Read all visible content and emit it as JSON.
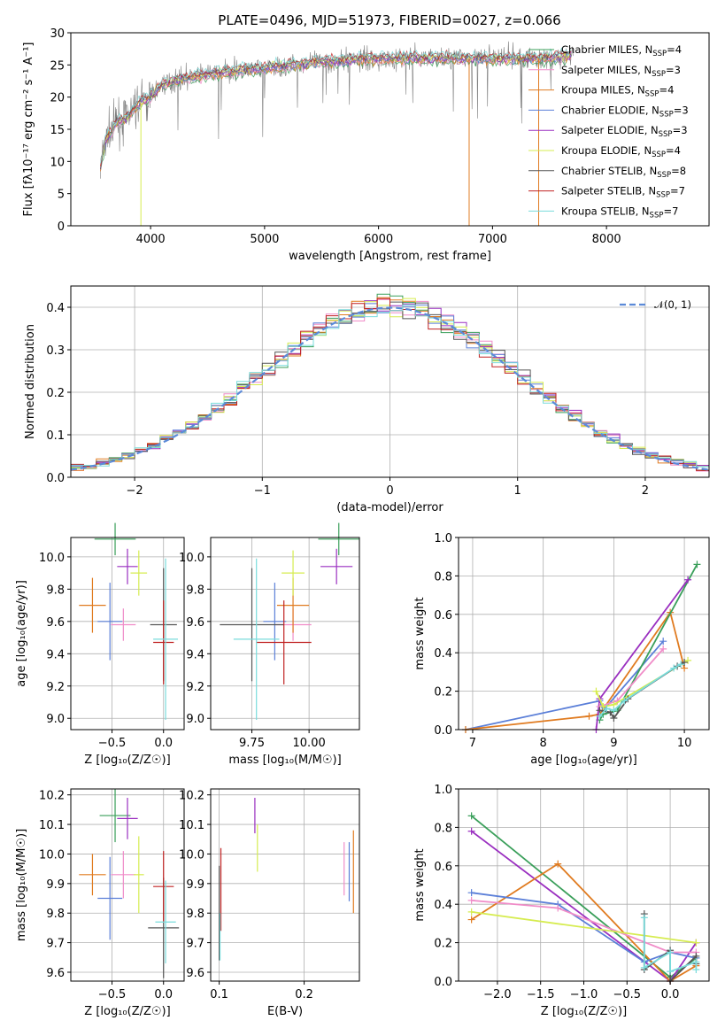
{
  "colors": {
    "chabrier_miles": "#3a9f5a",
    "salpeter_miles": "#f08cc8",
    "kroupa_miles": "#e07b20",
    "chabrier_elodie": "#5b7fd8",
    "salpeter_elodie": "#9a2fc0",
    "kroupa_elodie": "#d6ec50",
    "chabrier_stelib": "#555555",
    "salpeter_stelib": "#c02222",
    "kroupa_stelib": "#7adcdc",
    "grid": "#b0b0b0",
    "data_spectrum": "#808080",
    "normal_curve": "#5b8ad8"
  },
  "legend": [
    {
      "name": "Chabrier MILES",
      "n": "4",
      "color": "#3a9f5a"
    },
    {
      "name": "Salpeter MILES",
      "n": "3",
      "color": "#f08cc8"
    },
    {
      "name": "Kroupa MILES",
      "n": "4",
      "color": "#e07b20"
    },
    {
      "name": "Chabrier ELODIE",
      "n": "3",
      "color": "#5b7fd8"
    },
    {
      "name": "Salpeter ELODIE",
      "n": "3",
      "color": "#9a2fc0"
    },
    {
      "name": "Kroupa ELODIE",
      "n": "4",
      "color": "#d6ec50"
    },
    {
      "name": "Chabrier STELIB",
      "n": "8",
      "color": "#555555"
    },
    {
      "name": "Salpeter STELIB",
      "n": "7",
      "color": "#c02222"
    },
    {
      "name": "Kroupa STELIB",
      "n": "7",
      "color": "#7adcdc"
    }
  ],
  "chart_data": [
    {
      "id": "spectrum",
      "type": "line",
      "title": "PLATE=0496, MJD=51973, FIBERID=0027, z=0.066",
      "xlabel": "wavelength [Angstrom, rest frame]",
      "ylabel": "Flux [fλ10⁻¹⁷ erg cm⁻² s⁻¹ A⁻¹]",
      "xlim": [
        3300,
        8900
      ],
      "ylim": [
        0,
        30
      ],
      "xticks": [
        4000,
        5000,
        6000,
        7000,
        8000
      ],
      "yticks": [
        0,
        5,
        10,
        15,
        20,
        25,
        30
      ],
      "continuum": [
        [
          3550,
          8
        ],
        [
          3600,
          13
        ],
        [
          3700,
          16
        ],
        [
          3800,
          17
        ],
        [
          3900,
          19
        ],
        [
          4000,
          20
        ],
        [
          4100,
          22
        ],
        [
          4300,
          23
        ],
        [
          4500,
          23.5
        ],
        [
          4700,
          24
        ],
        [
          5000,
          24.5
        ],
        [
          5500,
          25.5
        ],
        [
          6000,
          26
        ],
        [
          6500,
          26
        ],
        [
          7000,
          26
        ],
        [
          7500,
          26
        ],
        [
          7700,
          26.5
        ]
      ]
    },
    {
      "id": "residuals",
      "type": "line",
      "xlabel": "(data-model)/error",
      "ylabel": "Normed distribution",
      "xlim": [
        -2.5,
        2.5
      ],
      "ylim": [
        0,
        0.45
      ],
      "xticks": [
        -2,
        -1,
        0,
        1,
        2
      ],
      "yticks": [
        0.0,
        0.1,
        0.2,
        0.3,
        0.4
      ],
      "legend_label": "𝒩(0, 1)",
      "hist_bin_width": 0.1
    },
    {
      "id": "age_vs_Z",
      "type": "scatter",
      "xlabel": "Z [log₁₀(Z/Z☉)]",
      "ylabel": "age  [log₁₀(age/yr)]",
      "xlim": [
        -0.9,
        0.2
      ],
      "ylim": [
        8.93,
        10.12
      ],
      "xticks": [
        -0.5,
        0.0
      ],
      "yticks": [
        9.0,
        9.2,
        9.4,
        9.6,
        9.8,
        10.0
      ],
      "points": [
        {
          "x": -0.47,
          "y": 10.11,
          "xerr": 0.2,
          "yerr": 0.1,
          "c": "chabrier_miles"
        },
        {
          "x": -0.39,
          "y": 9.58,
          "xerr": 0.12,
          "yerr": 0.1,
          "c": "salpeter_miles"
        },
        {
          "x": -0.69,
          "y": 9.7,
          "xerr": 0.13,
          "yerr": 0.17,
          "c": "kroupa_miles"
        },
        {
          "x": -0.52,
          "y": 9.6,
          "xerr": 0.12,
          "yerr": 0.24,
          "c": "chabrier_elodie"
        },
        {
          "x": -0.35,
          "y": 9.94,
          "xerr": 0.1,
          "yerr": 0.11,
          "c": "salpeter_elodie"
        },
        {
          "x": -0.24,
          "y": 9.9,
          "xerr": 0.08,
          "yerr": 0.14,
          "c": "kroupa_elodie"
        },
        {
          "x": 0.0,
          "y": 9.58,
          "xerr": 0.13,
          "yerr": 0.35,
          "c": "chabrier_stelib"
        },
        {
          "x": 0.0,
          "y": 9.47,
          "xerr": 0.1,
          "yerr": 0.26,
          "c": "salpeter_stelib"
        },
        {
          "x": 0.02,
          "y": 9.49,
          "xerr": 0.12,
          "yerr": 0.5,
          "c": "kroupa_stelib"
        }
      ]
    },
    {
      "id": "age_vs_mass",
      "type": "scatter",
      "xlabel": "mass [log₁₀(M/M☉)]",
      "ylabel": "",
      "xlim": [
        9.57,
        10.22
      ],
      "ylim": [
        8.93,
        10.12
      ],
      "xticks": [
        9.75,
        10.0
      ],
      "yticks": [
        9.0,
        9.2,
        9.4,
        9.6,
        9.8,
        10.0
      ],
      "points": [
        {
          "x": 10.13,
          "y": 10.11,
          "xerr": 0.09,
          "yerr": 0.1,
          "c": "chabrier_miles"
        },
        {
          "x": 9.93,
          "y": 9.58,
          "xerr": 0.08,
          "yerr": 0.1,
          "c": "salpeter_miles"
        },
        {
          "x": 9.93,
          "y": 9.7,
          "xerr": 0.07,
          "yerr": 0.17,
          "c": "kroupa_miles"
        },
        {
          "x": 9.85,
          "y": 9.6,
          "xerr": 0.05,
          "yerr": 0.24,
          "c": "chabrier_elodie"
        },
        {
          "x": 10.12,
          "y": 9.94,
          "xerr": 0.07,
          "yerr": 0.11,
          "c": "salpeter_elodie"
        },
        {
          "x": 9.93,
          "y": 9.9,
          "xerr": 0.05,
          "yerr": 0.14,
          "c": "kroupa_elodie"
        },
        {
          "x": 9.75,
          "y": 9.58,
          "xerr": 0.14,
          "yerr": 0.35,
          "c": "chabrier_stelib"
        },
        {
          "x": 9.89,
          "y": 9.47,
          "xerr": 0.12,
          "yerr": 0.26,
          "c": "salpeter_stelib"
        },
        {
          "x": 9.77,
          "y": 9.49,
          "xerr": 0.1,
          "yerr": 0.5,
          "c": "kroupa_stelib"
        }
      ]
    },
    {
      "id": "weight_vs_age",
      "type": "line",
      "xlabel": "age  [log₁₀(age/yr)]",
      "ylabel": "mass weight",
      "xlim": [
        6.8,
        10.35
      ],
      "ylim": [
        0,
        1.0
      ],
      "xticks": [
        7,
        8,
        9,
        10
      ],
      "yticks": [
        0.0,
        0.2,
        0.4,
        0.6,
        0.8,
        1.0
      ],
      "series": [
        {
          "c": "chabrier_elodie",
          "x": [
            6.9,
            8.8,
            8.85,
            9.7
          ],
          "y": [
            0.0,
            0.15,
            0.1,
            0.46
          ]
        },
        {
          "c": "kroupa_miles",
          "x": [
            6.9,
            8.65,
            8.8,
            9.8,
            10.0
          ],
          "y": [
            0.0,
            0.07,
            0.08,
            0.61,
            0.32
          ]
        },
        {
          "c": "chabrier_miles",
          "x": [
            8.8,
            8.85,
            9.05,
            10.18
          ],
          "y": [
            0.05,
            0.08,
            0.1,
            0.86
          ]
        },
        {
          "c": "salpeter_elodie",
          "x": [
            8.75,
            8.8,
            10.05
          ],
          "y": [
            0.0,
            0.16,
            0.78
          ]
        },
        {
          "c": "salpeter_miles",
          "x": [
            8.8,
            9.05,
            9.7
          ],
          "y": [
            0.12,
            0.15,
            0.42
          ]
        },
        {
          "c": "kroupa_elodie",
          "x": [
            8.75,
            8.85,
            9.0,
            10.05
          ],
          "y": [
            0.2,
            0.12,
            0.13,
            0.36
          ]
        },
        {
          "c": "chabrier_stelib",
          "x": [
            8.8,
            8.95,
            9.0,
            9.2,
            9.9,
            10.0
          ],
          "y": [
            0.1,
            0.09,
            0.06,
            0.16,
            0.33,
            0.35
          ]
        },
        {
          "c": "kroupa_stelib",
          "x": [
            8.8,
            8.9,
            9.0,
            9.15,
            9.85,
            9.95
          ],
          "y": [
            0.07,
            0.11,
            0.1,
            0.15,
            0.32,
            0.34
          ]
        }
      ]
    },
    {
      "id": "mass_vs_Z",
      "type": "scatter",
      "xlabel": "Z [log₁₀(Z/Z☉)]",
      "ylabel": "mass [log₁₀(M/M☉)]",
      "xlim": [
        -0.9,
        0.2
      ],
      "ylim": [
        9.57,
        10.22
      ],
      "xticks": [
        -0.5,
        0.0
      ],
      "yticks": [
        9.6,
        9.7,
        9.8,
        9.9,
        10.0,
        10.1,
        10.2
      ],
      "points": [
        {
          "x": -0.47,
          "y": 10.13,
          "xerr": 0.15,
          "yerr": 0.09,
          "c": "chabrier_miles"
        },
        {
          "x": -0.39,
          "y": 9.93,
          "xerr": 0.12,
          "yerr": 0.08,
          "c": "salpeter_miles"
        },
        {
          "x": -0.69,
          "y": 9.93,
          "xerr": 0.13,
          "yerr": 0.07,
          "c": "kroupa_miles"
        },
        {
          "x": -0.52,
          "y": 9.85,
          "xerr": 0.12,
          "yerr": 0.14,
          "c": "chabrier_elodie"
        },
        {
          "x": -0.35,
          "y": 10.12,
          "xerr": 0.1,
          "yerr": 0.07,
          "c": "salpeter_elodie"
        },
        {
          "x": -0.24,
          "y": 9.93,
          "xerr": 0.05,
          "yerr": 0.13,
          "c": "kroupa_elodie"
        },
        {
          "x": 0.0,
          "y": 9.75,
          "xerr": 0.15,
          "yerr": 0.17,
          "c": "chabrier_stelib"
        },
        {
          "x": 0.0,
          "y": 9.89,
          "xerr": 0.1,
          "yerr": 0.12,
          "c": "salpeter_stelib"
        },
        {
          "x": 0.02,
          "y": 9.77,
          "xerr": 0.1,
          "yerr": 0.14,
          "c": "kroupa_stelib"
        }
      ]
    },
    {
      "id": "mass_vs_ebv",
      "type": "scatter",
      "xlabel": "E(B-V)",
      "ylabel": "",
      "xlim": [
        0.09,
        0.265
      ],
      "ylim": [
        9.57,
        10.22
      ],
      "xticks": [
        0.1,
        0.2
      ],
      "yticks": [
        9.6,
        9.7,
        9.8,
        9.9,
        10.0,
        10.1,
        10.2
      ],
      "points": [
        {
          "x": 0.142,
          "y": 10.13,
          "xerr": 0,
          "yerr": 0.06,
          "c": "salpeter_elodie"
        },
        {
          "x": 0.145,
          "y": 10.02,
          "xerr": 0,
          "yerr": 0.08,
          "c": "kroupa_elodie"
        },
        {
          "x": 0.247,
          "y": 9.95,
          "xerr": 0,
          "yerr": 0.09,
          "c": "salpeter_miles"
        },
        {
          "x": 0.253,
          "y": 9.94,
          "xerr": 0,
          "yerr": 0.1,
          "c": "chabrier_elodie"
        },
        {
          "x": 0.258,
          "y": 9.94,
          "xerr": 0,
          "yerr": 0.14,
          "c": "kroupa_miles"
        },
        {
          "x": 0.102,
          "y": 9.88,
          "xerr": 0,
          "yerr": 0.14,
          "c": "salpeter_stelib"
        },
        {
          "x": 0.1,
          "y": 9.8,
          "xerr": 0,
          "yerr": 0.16,
          "c": "chabrier_stelib"
        },
        {
          "x": 0.101,
          "y": 9.72,
          "xerr": 0,
          "yerr": 0.08,
          "c": "kroupa_stelib"
        }
      ]
    },
    {
      "id": "weight_vs_Z",
      "type": "line",
      "xlabel": "Z [log₁₀(Z/Z☉)]",
      "ylabel": "mass weight",
      "xlim": [
        -2.45,
        0.45
      ],
      "ylim": [
        0,
        1.0
      ],
      "xticks": [
        -2.0,
        -1.5,
        -1.0,
        -0.5,
        0.0
      ],
      "yticks": [
        0.0,
        0.2,
        0.4,
        0.6,
        0.8,
        1.0
      ],
      "series": [
        {
          "c": "chabrier_miles",
          "x": [
            -2.3,
            0.0,
            0.3
          ],
          "y": [
            0.86,
            0.02,
            0.12
          ]
        },
        {
          "c": "salpeter_elodie",
          "x": [
            -2.3,
            0.0,
            0.3
          ],
          "y": [
            0.78,
            0.0,
            0.2
          ]
        },
        {
          "c": "kroupa_miles",
          "x": [
            -2.3,
            -1.3,
            0.0,
            0.3
          ],
          "y": [
            0.32,
            0.61,
            0.0,
            0.08
          ]
        },
        {
          "c": "chabrier_elodie",
          "x": [
            -2.3,
            -1.3,
            -0.3,
            0.0,
            0.3
          ],
          "y": [
            0.46,
            0.4,
            0.1,
            0.15,
            0.12
          ]
        },
        {
          "c": "salpeter_miles",
          "x": [
            -2.3,
            -1.3,
            0.0,
            0.3
          ],
          "y": [
            0.42,
            0.38,
            0.15,
            0.15
          ]
        },
        {
          "c": "kroupa_elodie",
          "x": [
            -2.3,
            0.3
          ],
          "y": [
            0.36,
            0.2
          ]
        },
        {
          "c": "chabrier_stelib",
          "x": [
            -0.3,
            -0.3,
            0.0,
            0.0,
            0.3,
            0.3
          ],
          "y": [
            0.35,
            0.06,
            0.16,
            0.0,
            0.13,
            0.09
          ]
        },
        {
          "c": "kroupa_stelib",
          "x": [
            -0.3,
            -0.3,
            0.0,
            0.0,
            0.3,
            0.3
          ],
          "y": [
            0.33,
            0.07,
            0.15,
            0.05,
            0.1,
            0.06
          ]
        }
      ]
    }
  ]
}
